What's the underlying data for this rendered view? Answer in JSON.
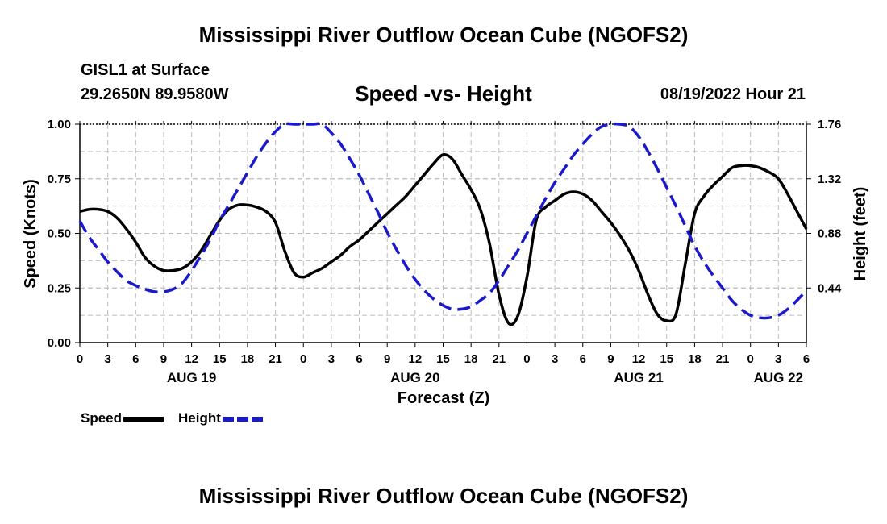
{
  "header": {
    "title": "Mississippi River Outflow Ocean Cube (NGOFS2)",
    "station": "GISL1 at Surface",
    "coords": "29.2650N  89.9580W",
    "plot_title": "Speed -vs- Height",
    "datetime": "08/19/2022 Hour 21"
  },
  "footer": {
    "title": "Mississippi River Outflow Ocean Cube (NGOFS2)"
  },
  "legend": [
    {
      "label": "Speed",
      "color": "#000000"
    },
    {
      "label": "Height",
      "color": "#1a1acc"
    }
  ],
  "chart_data": {
    "type": "line",
    "title": "Speed -vs- Height",
    "xlabel": "Forecast (Z)",
    "ylabel": "Speed (Knots)",
    "ylabel_right": "Height (feet)",
    "xlim": [
      0,
      78
    ],
    "ylim": [
      0,
      1.0
    ],
    "ylim_right": [
      0,
      1.76
    ],
    "grid": true,
    "x_tick_labels": [
      "0",
      "3",
      "6",
      "9",
      "12",
      "15",
      "18",
      "21",
      "0",
      "3",
      "6",
      "9",
      "12",
      "15",
      "18",
      "21",
      "0",
      "3",
      "6",
      "9",
      "12",
      "15",
      "18",
      "21",
      "0",
      "3",
      "6"
    ],
    "date_labels": [
      {
        "x": 12,
        "label": "AUG 19"
      },
      {
        "x": 36,
        "label": "AUG 20"
      },
      {
        "x": 60,
        "label": "AUG 21"
      },
      {
        "x": 75,
        "label": "AUG 22"
      }
    ],
    "y_ticks_left": [
      "0.00",
      "0.25",
      "0.50",
      "0.75",
      "1.00"
    ],
    "y_tick_values_left": [
      0,
      0.25,
      0.5,
      0.75,
      1.0
    ],
    "y_ticks_right": [
      "0.44",
      "0.88",
      "1.32",
      "1.76"
    ],
    "y_tick_values_right": [
      0.44,
      0.88,
      1.32,
      1.76
    ],
    "series": [
      {
        "name": "Speed",
        "axis": "left",
        "x": [
          0,
          1,
          2,
          3,
          4,
          5,
          6,
          7,
          8,
          9,
          10,
          11,
          12,
          13,
          14,
          15,
          16,
          17,
          18,
          19,
          20,
          21,
          22,
          23,
          24,
          25,
          26,
          27,
          28,
          29,
          30,
          31,
          32,
          33,
          34,
          35,
          36,
          37,
          38,
          39,
          40,
          41,
          42,
          43,
          44,
          45,
          46,
          47,
          48,
          49,
          50,
          51,
          52,
          53,
          54,
          55,
          56,
          57,
          58,
          59,
          60,
          61,
          62,
          63,
          64,
          65,
          66,
          67,
          68,
          69,
          70,
          71,
          72,
          73,
          74,
          75,
          76,
          77,
          78
        ],
        "values": [
          0.6,
          0.61,
          0.61,
          0.6,
          0.57,
          0.52,
          0.46,
          0.39,
          0.35,
          0.33,
          0.33,
          0.34,
          0.37,
          0.42,
          0.49,
          0.56,
          0.61,
          0.63,
          0.63,
          0.62,
          0.6,
          0.55,
          0.42,
          0.32,
          0.3,
          0.32,
          0.34,
          0.37,
          0.4,
          0.44,
          0.47,
          0.51,
          0.55,
          0.59,
          0.63,
          0.67,
          0.72,
          0.77,
          0.82,
          0.86,
          0.84,
          0.77,
          0.7,
          0.61,
          0.45,
          0.22,
          0.09,
          0.12,
          0.3,
          0.56,
          0.62,
          0.65,
          0.68,
          0.69,
          0.68,
          0.65,
          0.6,
          0.55,
          0.49,
          0.42,
          0.33,
          0.22,
          0.13,
          0.1,
          0.13,
          0.36,
          0.59,
          0.67,
          0.72,
          0.76,
          0.8,
          0.81,
          0.81,
          0.8,
          0.78,
          0.75,
          0.68,
          0.6,
          0.52
        ]
      },
      {
        "name": "Height",
        "axis": "right",
        "x": [
          0,
          1,
          2,
          3,
          4,
          5,
          6,
          7,
          8,
          9,
          10,
          11,
          12,
          13,
          14,
          15,
          16,
          17,
          18,
          19,
          20,
          21,
          22,
          23,
          24,
          25,
          26,
          27,
          28,
          29,
          30,
          31,
          32,
          33,
          34,
          35,
          36,
          37,
          38,
          39,
          40,
          41,
          42,
          43,
          44,
          45,
          46,
          47,
          48,
          49,
          50,
          51,
          52,
          53,
          54,
          55,
          56,
          57,
          58,
          59,
          60,
          61,
          62,
          63,
          64,
          65,
          66,
          67,
          68,
          69,
          70,
          71,
          72,
          73,
          74,
          75,
          76,
          77,
          78
        ],
        "values": [
          0.98,
          0.85,
          0.75,
          0.65,
          0.57,
          0.5,
          0.46,
          0.43,
          0.41,
          0.41,
          0.43,
          0.48,
          0.58,
          0.7,
          0.83,
          0.98,
          1.11,
          1.24,
          1.37,
          1.5,
          1.61,
          1.7,
          1.76,
          1.8,
          1.81,
          1.8,
          1.76,
          1.69,
          1.6,
          1.48,
          1.35,
          1.2,
          1.05,
          0.89,
          0.75,
          0.62,
          0.51,
          0.42,
          0.35,
          0.3,
          0.27,
          0.27,
          0.29,
          0.34,
          0.4,
          0.5,
          0.62,
          0.74,
          0.88,
          1.02,
          1.16,
          1.29,
          1.4,
          1.51,
          1.6,
          1.68,
          1.74,
          1.77,
          1.78,
          1.74,
          1.66,
          1.54,
          1.4,
          1.25,
          1.1,
          0.94,
          0.78,
          0.65,
          0.54,
          0.44,
          0.34,
          0.27,
          0.22,
          0.2,
          0.2,
          0.22,
          0.27,
          0.34,
          0.42
        ]
      }
    ]
  }
}
